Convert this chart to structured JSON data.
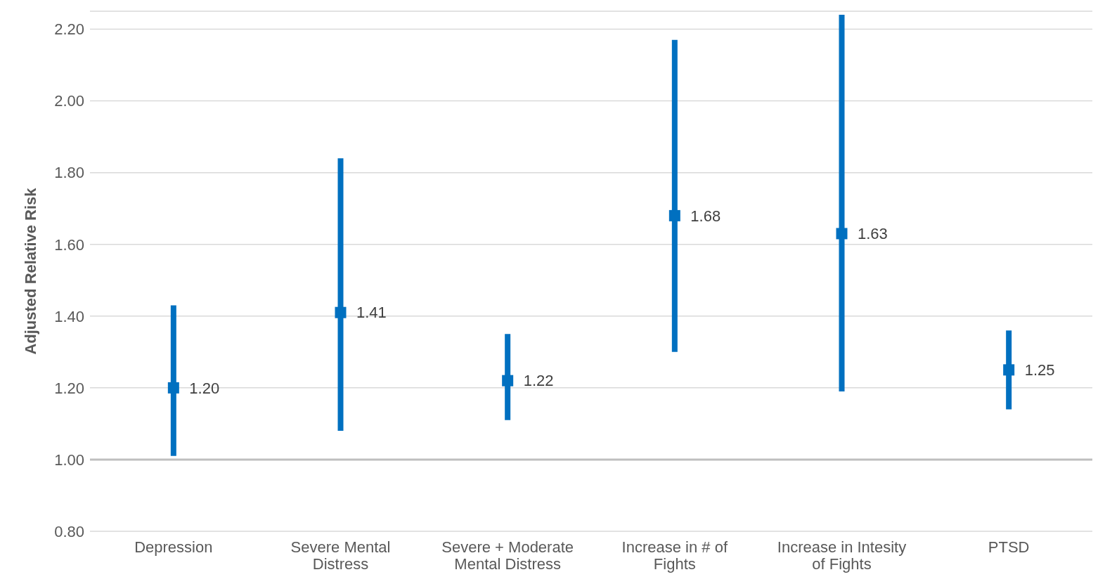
{
  "chart_data": {
    "type": "scatter",
    "ylabel": "Adjusted Relative Risk",
    "categories": [
      "Depression",
      "Severe Mental Distress",
      "Severe + Moderate Mental Distress",
      "Increase in # of Fights",
      "Increase in Intesity of Fights",
      "PTSD"
    ],
    "values": [
      1.2,
      1.41,
      1.22,
      1.68,
      1.63,
      1.25
    ],
    "value_labels": [
      "1.20",
      "1.41",
      "1.22",
      "1.68",
      "1.63",
      "1.25"
    ],
    "errors": [
      [
        1.01,
        1.43
      ],
      [
        1.08,
        1.84
      ],
      [
        1.11,
        1.35
      ],
      [
        1.3,
        2.17
      ],
      [
        1.19,
        2.24
      ],
      [
        1.14,
        1.36
      ]
    ],
    "color": "#0070c0",
    "marker": "square",
    "grid": "y",
    "legend": false,
    "ylim": [
      0.8,
      2.25
    ],
    "yticks": [
      {
        "value": 0.8,
        "label": "0.80"
      },
      {
        "value": 1.0,
        "label": "1.00"
      },
      {
        "value": 1.2,
        "label": "1.20"
      },
      {
        "value": 1.4,
        "label": "1.40"
      },
      {
        "value": 1.6,
        "label": "1.60"
      },
      {
        "value": 1.8,
        "label": "1.80"
      },
      {
        "value": 2.0,
        "label": "2.00"
      },
      {
        "value": 2.2,
        "label": "2.20"
      }
    ],
    "ref_lines": [
      {
        "axis": "y",
        "value": 1.0,
        "color": "#bfbfbf"
      }
    ]
  }
}
